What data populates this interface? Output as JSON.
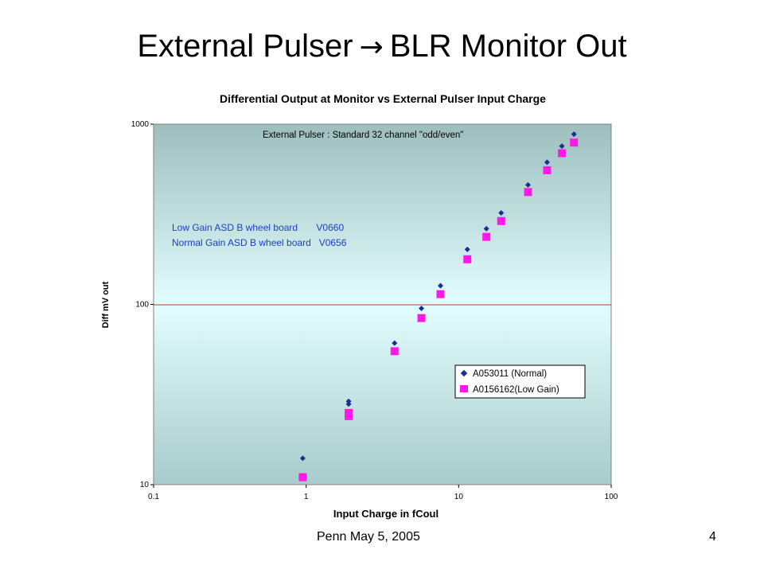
{
  "slide": {
    "title_left": "External Pulser",
    "arrow": "→",
    "title_right": "BLR Monitor Out",
    "footer_left": "Penn  May 5, 2005",
    "footer_right": "4"
  },
  "chart_data": {
    "type": "scatter",
    "title": "Differential Output at Monitor vs External Pulser Input Charge",
    "xlabel": "Input Charge in fCoul",
    "ylabel": "Diff mV out",
    "xscale": "log",
    "yscale": "log",
    "xlim": [
      0.1,
      100
    ],
    "ylim": [
      10,
      1000
    ],
    "xticks": [
      "0.1",
      "1",
      "10",
      "100"
    ],
    "yticks": [
      "10",
      "100",
      "1000"
    ],
    "gridlines": [
      100
    ],
    "legend_position": "lower-right",
    "annotations": [
      "External Pulser :  Standard  32 channel \"odd/even\"",
      "Low Gain ASD B wheel board       V0660",
      "Normal Gain ASD B wheel board   V0656"
    ],
    "colors": {
      "plot_top": "#9fbfbf",
      "plot_bottom_band": "#a4c6c6",
      "plot_mid": "#dffafa",
      "plot_low": "#b2d4d4",
      "series_normal": "#1a2f8f",
      "series_low": "#ff19e6",
      "gridline": "#c0392b",
      "annotation_blue": "#1c3fc4"
    },
    "series": [
      {
        "name": "A053011 (Normal)",
        "marker": "diamond",
        "x": [
          0.95,
          1.9,
          1.9,
          3.8,
          5.7,
          7.6,
          11.4,
          15.2,
          19,
          28.5,
          38,
          47.5,
          57
        ],
        "y": [
          14,
          29,
          28,
          61,
          95,
          127,
          202,
          263,
          322,
          460,
          615,
          755,
          880
        ]
      },
      {
        "name": "A0156162(Low Gain)",
        "marker": "square",
        "x": [
          0.95,
          1.9,
          1.9,
          3.8,
          5.7,
          7.6,
          11.4,
          15.2,
          19,
          28.5,
          38,
          47.5,
          57
        ],
        "y": [
          11,
          25,
          24,
          55,
          84,
          114,
          178,
          237,
          290,
          420,
          555,
          690,
          790
        ]
      }
    ]
  }
}
